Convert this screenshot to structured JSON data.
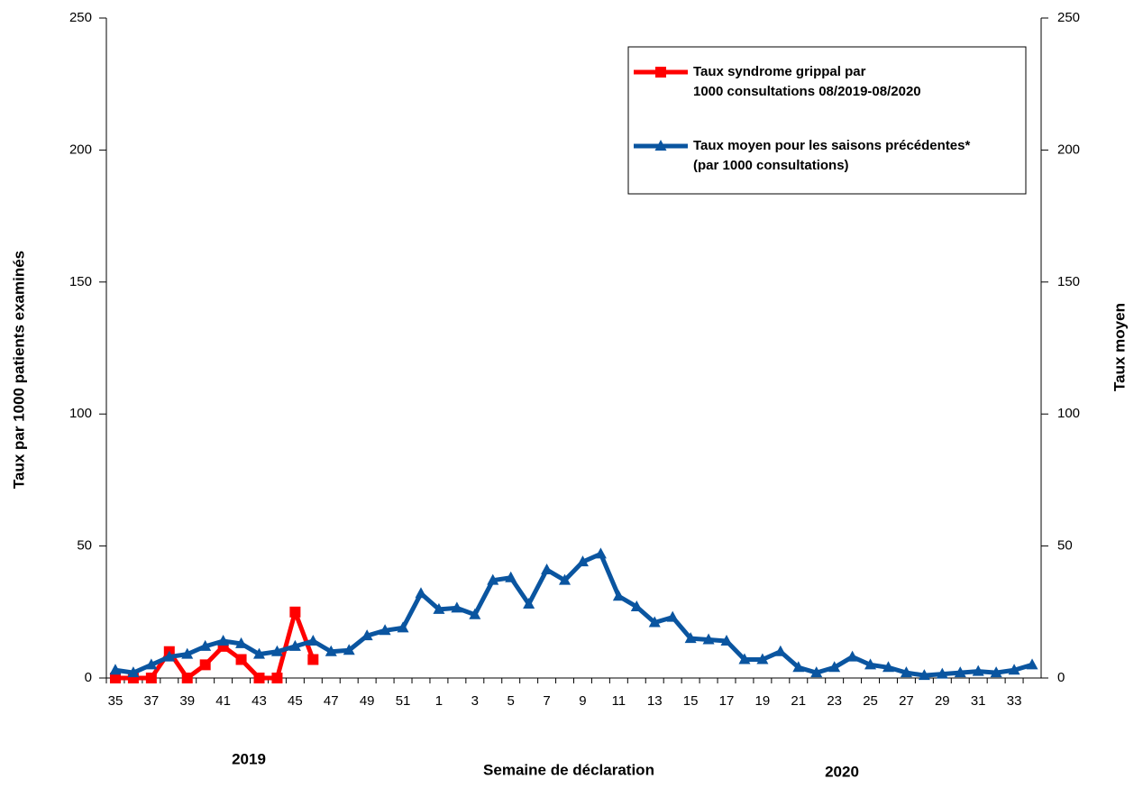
{
  "chart_data": {
    "type": "line",
    "categories": [
      "35",
      null,
      "37",
      null,
      "39",
      null,
      "41",
      null,
      "43",
      null,
      "45",
      null,
      "47",
      null,
      "49",
      null,
      "51",
      null,
      "1",
      null,
      "3",
      null,
      "5",
      null,
      "7",
      null,
      "9",
      null,
      "11",
      null,
      "13",
      null,
      "15",
      null,
      "17",
      null,
      "19",
      null,
      "21",
      null,
      "23",
      null,
      "25",
      null,
      "27",
      null,
      "29",
      null,
      "31",
      null,
      "33",
      null
    ],
    "series": [
      {
        "name": "Taux syndrome grippal par 1000 consultations 08/2019-08/2020",
        "color": "#ff0000",
        "marker": "square",
        "axis": "y",
        "values": [
          0,
          0,
          0,
          10,
          0,
          5,
          12,
          7,
          0,
          0,
          25,
          7,
          null,
          null,
          null,
          null,
          null,
          null,
          null,
          null,
          null,
          null,
          null,
          null,
          null,
          null,
          null,
          null,
          null,
          null,
          null,
          null,
          null,
          null,
          null,
          null,
          null,
          null,
          null,
          null,
          null,
          null,
          null,
          null,
          null,
          null,
          null,
          null,
          null,
          null,
          null,
          null
        ]
      },
      {
        "name": "Taux moyen pour les saisons précédentes* (par 1000 consultations)",
        "color": "#0a55a0",
        "marker": "triangle",
        "axis": "y2",
        "values": [
          3,
          2,
          5,
          8,
          9,
          12,
          14,
          13,
          9,
          10,
          12,
          14,
          10,
          10.5,
          16,
          18,
          19,
          32,
          26,
          26.5,
          24,
          37,
          38,
          28,
          41,
          37,
          44,
          47,
          31,
          27,
          21,
          23,
          15,
          14.5,
          14,
          7,
          7,
          10,
          4,
          2,
          4,
          8,
          5,
          4,
          2,
          1,
          1.5,
          2,
          2.5,
          2,
          3,
          5
        ]
      }
    ],
    "ylabel": "Taux par 1000 patients examinés",
    "y2label": "Taux moyen",
    "xlabel": "Semaine de déclaration",
    "annotations": [
      "2019",
      "2020"
    ],
    "ylim": [
      0,
      250
    ],
    "yticks": [
      0,
      50,
      100,
      150,
      200,
      250
    ],
    "y2lim": [
      0,
      250
    ],
    "y2ticks": [
      0,
      50,
      100,
      150,
      200,
      250
    ],
    "legend": "top-right"
  }
}
